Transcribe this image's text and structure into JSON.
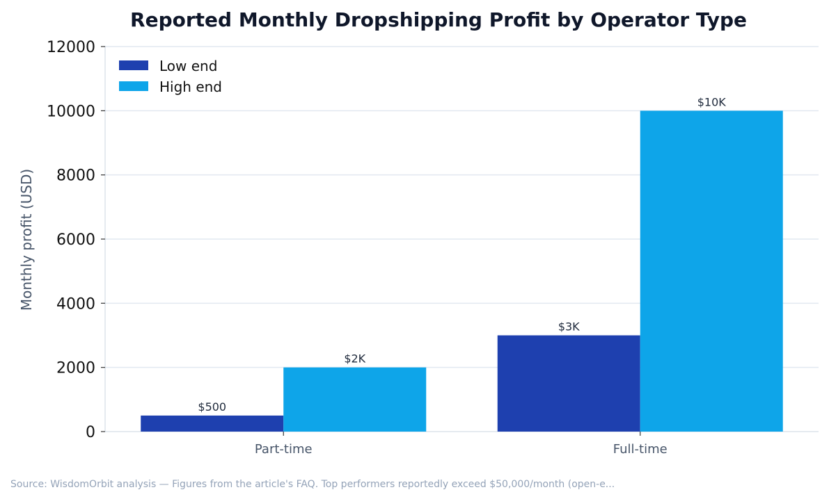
{
  "chart_data": {
    "type": "bar",
    "title": "Reported Monthly Dropshipping Profit by Operator Type",
    "xlabel": "",
    "ylabel": "Monthly profit (USD)",
    "categories": [
      "Part-time",
      "Full-time"
    ],
    "series": [
      {
        "name": "Low end",
        "values": [
          500,
          3000
        ],
        "labels": [
          "$500",
          "$3K"
        ],
        "color": "#1e40af"
      },
      {
        "name": "High end",
        "values": [
          2000,
          10000
        ],
        "labels": [
          "$2K",
          "$10K"
        ],
        "color": "#0ea5e9"
      }
    ],
    "ylim": [
      0,
      12000
    ],
    "yticks": [
      0,
      2000,
      4000,
      6000,
      8000,
      10000,
      12000
    ],
    "grid": true,
    "legend_position": "top-left",
    "source": "Source: WisdomOrbit analysis — Figures from the article's FAQ. Top performers reportedly exceed $50,000/month (open-e..."
  }
}
